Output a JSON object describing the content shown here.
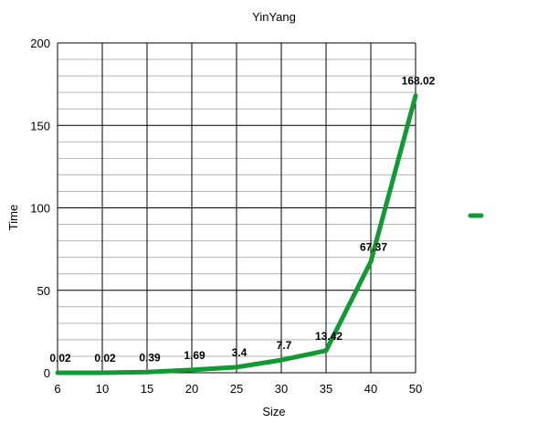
{
  "chart_data": {
    "type": "line",
    "title": "YinYang",
    "xlabel": "Size",
    "ylabel": "Time",
    "categories": [
      "6",
      "10",
      "15",
      "20",
      "25",
      "30",
      "35",
      "40",
      "50"
    ],
    "series": [
      {
        "values": [
          0.02,
          0.02,
          0.39,
          1.69,
          3.4,
          7.7,
          13.42,
          67.37,
          168.02
        ]
      }
    ],
    "data_labels": [
      "0.02",
      "0.02",
      "0.39",
      "1.69",
      "3.4",
      "7.7",
      "13.42",
      "67.37",
      "168.02"
    ],
    "ylim": [
      0,
      200
    ],
    "y_ticks": [
      "0",
      "50",
      "100",
      "150",
      "200"
    ],
    "grid": true,
    "legend": "right",
    "line_color": "#119933"
  }
}
